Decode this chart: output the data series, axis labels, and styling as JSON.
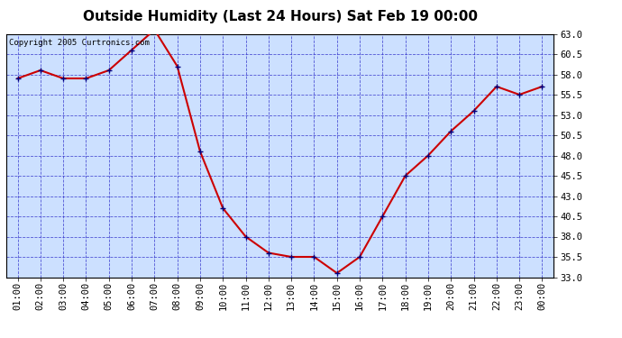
{
  "title": "Outside Humidity (Last 24 Hours) Sat Feb 19 00:00",
  "copyright": "Copyright 2005 Curtronics.com",
  "x_labels": [
    "01:00",
    "02:00",
    "03:00",
    "04:00",
    "05:00",
    "06:00",
    "07:00",
    "08:00",
    "09:00",
    "10:00",
    "11:00",
    "12:00",
    "13:00",
    "14:00",
    "15:00",
    "16:00",
    "17:00",
    "18:00",
    "19:00",
    "20:00",
    "21:00",
    "22:00",
    "23:00",
    "00:00"
  ],
  "y_values": [
    57.5,
    58.5,
    57.5,
    57.5,
    58.5,
    61.0,
    63.5,
    59.0,
    48.5,
    41.5,
    38.0,
    36.0,
    35.5,
    35.5,
    33.5,
    35.5,
    40.5,
    45.5,
    48.0,
    51.0,
    53.5,
    56.5,
    55.5,
    56.5
  ],
  "ylim_min": 33.0,
  "ylim_max": 63.0,
  "yticks": [
    33.0,
    35.5,
    38.0,
    40.5,
    43.0,
    45.5,
    48.0,
    50.5,
    53.0,
    55.5,
    58.0,
    60.5,
    63.0
  ],
  "line_color": "#cc0000",
  "marker_color": "#000080",
  "bg_color": "#ffffff",
  "plot_bg_color": "#cce0ff",
  "grid_color": "#3333cc",
  "title_color": "#000000",
  "copyright_color": "#000000",
  "title_fontsize": 11,
  "axis_label_fontsize": 7.5,
  "copyright_fontsize": 6.5
}
